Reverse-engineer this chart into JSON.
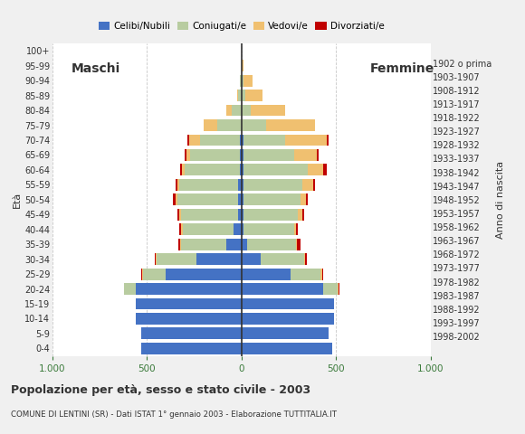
{
  "age_groups": [
    "0-4",
    "5-9",
    "10-14",
    "15-19",
    "20-24",
    "25-29",
    "30-34",
    "35-39",
    "40-44",
    "45-49",
    "50-54",
    "55-59",
    "60-64",
    "65-69",
    "70-74",
    "75-79",
    "80-84",
    "85-89",
    "90-94",
    "95-99",
    "100+"
  ],
  "birth_years": [
    "1998-2002",
    "1993-1997",
    "1988-1992",
    "1983-1987",
    "1978-1982",
    "1973-1977",
    "1968-1972",
    "1963-1967",
    "1958-1962",
    "1953-1957",
    "1948-1952",
    "1943-1947",
    "1938-1942",
    "1933-1937",
    "1928-1932",
    "1923-1927",
    "1918-1922",
    "1913-1917",
    "1908-1912",
    "1903-1907",
    "1902 o prima"
  ],
  "males": {
    "celibi": [
      530,
      530,
      560,
      560,
      560,
      400,
      240,
      80,
      40,
      20,
      20,
      20,
      10,
      10,
      10,
      0,
      0,
      0,
      0,
      0,
      0
    ],
    "coniugati": [
      0,
      0,
      0,
      0,
      60,
      120,
      210,
      240,
      270,
      300,
      320,
      310,
      290,
      260,
      210,
      130,
      50,
      20,
      10,
      0,
      0
    ],
    "vedovi": [
      0,
      0,
      0,
      0,
      0,
      5,
      5,
      5,
      10,
      10,
      10,
      10,
      15,
      20,
      55,
      70,
      30,
      5,
      0,
      0,
      0
    ],
    "divorziati": [
      0,
      0,
      0,
      0,
      0,
      5,
      5,
      10,
      10,
      10,
      15,
      10,
      10,
      10,
      10,
      0,
      0,
      0,
      0,
      0,
      0
    ]
  },
  "females": {
    "nubili": [
      480,
      460,
      490,
      490,
      430,
      260,
      100,
      30,
      10,
      10,
      10,
      10,
      10,
      10,
      10,
      0,
      0,
      0,
      0,
      0,
      0
    ],
    "coniugate": [
      0,
      0,
      0,
      0,
      80,
      160,
      230,
      260,
      270,
      290,
      300,
      310,
      340,
      270,
      220,
      130,
      50,
      20,
      10,
      0,
      0
    ],
    "vedove": [
      0,
      0,
      0,
      0,
      5,
      5,
      5,
      5,
      10,
      20,
      30,
      60,
      80,
      120,
      220,
      260,
      180,
      90,
      50,
      10,
      0
    ],
    "divorziate": [
      0,
      0,
      0,
      0,
      5,
      5,
      10,
      15,
      10,
      10,
      10,
      10,
      20,
      10,
      10,
      0,
      0,
      0,
      0,
      0,
      0
    ]
  },
  "colors": {
    "celibi": "#4472c4",
    "coniugati": "#b8cca0",
    "vedovi": "#f0c070",
    "divorziati": "#c00000"
  },
  "title": "Popolazione per età, sesso e stato civile - 2003",
  "subtitle": "COMUNE DI LENTINI (SR) - Dati ISTAT 1° gennaio 2003 - Elaborazione TUTTITALIA.IT",
  "xlabel_left": "Maschi",
  "xlabel_right": "Femmine",
  "ylabel_left": "Età",
  "ylabel_right": "Anno di nascita",
  "xlim": 1000,
  "xticks": [
    -1000,
    -500,
    0,
    500,
    1000
  ],
  "xtick_labels": [
    "1.000",
    "500",
    "0",
    "500",
    "1.000"
  ],
  "bg_color": "#f0f0f0",
  "plot_bg": "#ffffff",
  "legend_labels": [
    "Celibi/Nubili",
    "Coniugati/e",
    "Vedovi/e",
    "Divorziati/e"
  ]
}
